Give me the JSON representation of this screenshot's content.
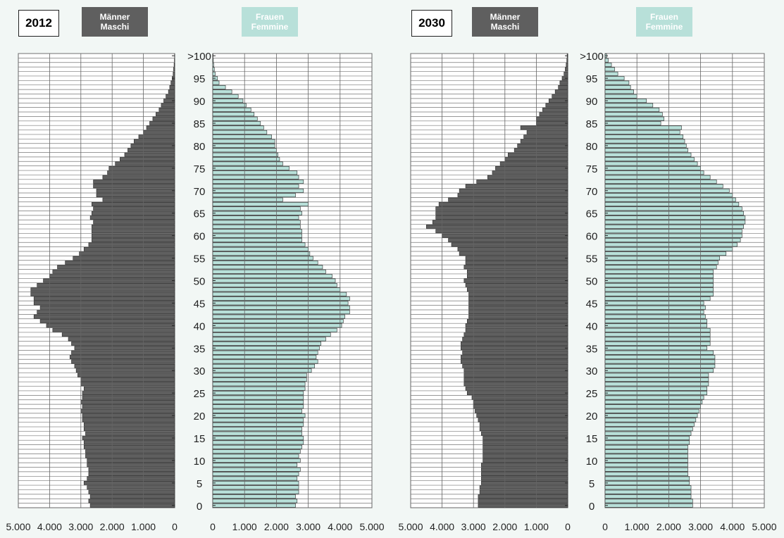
{
  "colors": {
    "male": "#5f5f5f",
    "female": "#b8e0d9",
    "grid": "#666666",
    "background": "#f2f7f5"
  },
  "legend": {
    "male_de": "Männer",
    "male_it": "Maschi",
    "female_de": "Frauen",
    "female_it": "Femmine"
  },
  "chart_data": [
    {
      "type": "bar",
      "title": "2012",
      "subtype": "population-pyramid",
      "age_labels": [
        "0",
        "5",
        "10",
        "15",
        "20",
        "25",
        "30",
        "35",
        "40",
        "45",
        "50",
        "55",
        "60",
        "65",
        "70",
        "75",
        "80",
        "85",
        "90",
        "95",
        ">100"
      ],
      "x_tick_labels_left": [
        "5.000",
        "4.000",
        "3.000",
        "2.000",
        "1.000",
        "0"
      ],
      "x_tick_labels_right": [
        "0",
        "1.000",
        "2.000",
        "3.000",
        "4.000",
        "5.000"
      ],
      "xlim": [
        0,
        5000
      ],
      "ages": [
        0,
        1,
        2,
        3,
        4,
        5,
        6,
        7,
        8,
        9,
        10,
        11,
        12,
        13,
        14,
        15,
        16,
        17,
        18,
        19,
        20,
        21,
        22,
        23,
        24,
        25,
        26,
        27,
        28,
        29,
        30,
        31,
        32,
        33,
        34,
        35,
        36,
        37,
        38,
        39,
        40,
        41,
        42,
        43,
        44,
        45,
        46,
        47,
        48,
        49,
        50,
        51,
        52,
        53,
        54,
        55,
        56,
        57,
        58,
        59,
        60,
        61,
        62,
        63,
        64,
        65,
        66,
        67,
        68,
        69,
        70,
        71,
        72,
        73,
        74,
        75,
        76,
        77,
        78,
        79,
        80,
        81,
        82,
        83,
        84,
        85,
        86,
        87,
        88,
        89,
        90,
        91,
        92,
        93,
        94,
        95,
        96,
        97,
        98,
        99,
        100
      ],
      "series": [
        {
          "name": "Männer",
          "values": [
            2700,
            2750,
            2700,
            2750,
            2800,
            2900,
            2800,
            2750,
            2750,
            2800,
            2800,
            2850,
            2850,
            2900,
            2900,
            2950,
            2850,
            2900,
            2900,
            2950,
            2950,
            3000,
            2950,
            3000,
            2950,
            2950,
            2900,
            3000,
            3000,
            3100,
            3150,
            3200,
            3300,
            3350,
            3300,
            3200,
            3300,
            3400,
            3600,
            3900,
            4100,
            4300,
            4500,
            4400,
            4300,
            4500,
            4500,
            4600,
            4600,
            4400,
            4200,
            4000,
            3900,
            3750,
            3500,
            3250,
            3050,
            2900,
            2750,
            2650,
            2650,
            2650,
            2650,
            2600,
            2700,
            2650,
            2600,
            2650,
            2300,
            2500,
            2500,
            2600,
            2600,
            2300,
            2150,
            2100,
            1900,
            1750,
            1600,
            1500,
            1400,
            1300,
            1150,
            1000,
            900,
            800,
            700,
            600,
            500,
            430,
            350,
            280,
            200,
            160,
            120,
            80,
            50,
            35,
            20,
            10,
            5
          ]
        },
        {
          "name": "Frauen",
          "values": [
            2600,
            2650,
            2600,
            2700,
            2700,
            2700,
            2650,
            2700,
            2750,
            2650,
            2750,
            2700,
            2750,
            2800,
            2850,
            2850,
            2800,
            2800,
            2850,
            2850,
            2900,
            2800,
            2850,
            2850,
            2850,
            2850,
            2900,
            2900,
            2950,
            2950,
            3100,
            3200,
            3300,
            3250,
            3300,
            3350,
            3400,
            3550,
            3700,
            3900,
            4050,
            4100,
            4150,
            4300,
            4300,
            4250,
            4300,
            4200,
            4000,
            3900,
            3850,
            3750,
            3550,
            3450,
            3300,
            3150,
            3050,
            3000,
            2900,
            2800,
            2800,
            2800,
            2750,
            2750,
            2700,
            2800,
            2750,
            3000,
            2200,
            2600,
            2850,
            2700,
            2850,
            2700,
            2650,
            2400,
            2200,
            2100,
            2050,
            2000,
            1950,
            1950,
            1850,
            1700,
            1600,
            1500,
            1400,
            1300,
            1200,
            1050,
            950,
            800,
            600,
            400,
            200,
            150,
            80,
            50,
            30,
            20,
            10
          ]
        }
      ]
    },
    {
      "type": "bar",
      "title": "2030",
      "subtype": "population-pyramid",
      "age_labels": [
        "0",
        "5",
        "10",
        "15",
        "20",
        "25",
        "30",
        "35",
        "40",
        "45",
        "50",
        "55",
        "60",
        "65",
        "70",
        "75",
        "80",
        "85",
        "90",
        "95",
        ">100"
      ],
      "x_tick_labels_left": [
        "5.000",
        "4.000",
        "3.000",
        "2.000",
        "1.000",
        "0"
      ],
      "x_tick_labels_right": [
        "0",
        "1.000",
        "2.000",
        "3.000",
        "4.000",
        "5.000"
      ],
      "xlim": [
        0,
        5000
      ],
      "ages": [
        0,
        1,
        2,
        3,
        4,
        5,
        6,
        7,
        8,
        9,
        10,
        11,
        12,
        13,
        14,
        15,
        16,
        17,
        18,
        19,
        20,
        21,
        22,
        23,
        24,
        25,
        26,
        27,
        28,
        29,
        30,
        31,
        32,
        33,
        34,
        35,
        36,
        37,
        38,
        39,
        40,
        41,
        42,
        43,
        44,
        45,
        46,
        47,
        48,
        49,
        50,
        51,
        52,
        53,
        54,
        55,
        56,
        57,
        58,
        59,
        60,
        61,
        62,
        63,
        64,
        65,
        66,
        67,
        68,
        69,
        70,
        71,
        72,
        73,
        74,
        75,
        76,
        77,
        78,
        79,
        80,
        81,
        82,
        83,
        84,
        85,
        86,
        87,
        88,
        89,
        90,
        91,
        92,
        93,
        94,
        95,
        96,
        97,
        98,
        99,
        100
      ],
      "series": [
        {
          "name": "Männer",
          "values": [
            2850,
            2850,
            2850,
            2800,
            2800,
            2750,
            2750,
            2750,
            2750,
            2750,
            2700,
            2700,
            2700,
            2700,
            2700,
            2700,
            2750,
            2800,
            2800,
            2850,
            2900,
            2950,
            3000,
            3000,
            3050,
            3200,
            3250,
            3300,
            3300,
            3300,
            3300,
            3350,
            3400,
            3400,
            3350,
            3400,
            3400,
            3350,
            3300,
            3250,
            3250,
            3200,
            3150,
            3150,
            3150,
            3150,
            3150,
            3150,
            3200,
            3250,
            3300,
            3200,
            3200,
            3300,
            3250,
            3250,
            3450,
            3500,
            3700,
            3800,
            4000,
            4200,
            4500,
            4300,
            4200,
            4200,
            4200,
            4100,
            3800,
            3500,
            3450,
            3250,
            2900,
            2550,
            2400,
            2300,
            2150,
            2000,
            1900,
            1700,
            1600,
            1500,
            1400,
            1300,
            1500,
            1000,
            1000,
            900,
            800,
            700,
            600,
            500,
            400,
            300,
            250,
            180,
            120,
            80,
            50,
            30,
            20
          ]
        },
        {
          "name": "Frauen",
          "values": [
            2750,
            2750,
            2700,
            2700,
            2700,
            2650,
            2650,
            2600,
            2600,
            2600,
            2600,
            2600,
            2600,
            2600,
            2650,
            2650,
            2700,
            2750,
            2800,
            2850,
            2900,
            2950,
            3000,
            3050,
            3100,
            3200,
            3200,
            3250,
            3250,
            3250,
            3400,
            3450,
            3450,
            3450,
            3400,
            3200,
            3300,
            3300,
            3300,
            3300,
            3200,
            3200,
            3150,
            3100,
            3150,
            3100,
            3300,
            3400,
            3400,
            3400,
            3400,
            3400,
            3400,
            3500,
            3550,
            3600,
            3800,
            4000,
            4150,
            4250,
            4300,
            4300,
            4350,
            4400,
            4400,
            4350,
            4300,
            4200,
            4100,
            4000,
            3900,
            3700,
            3500,
            3300,
            3100,
            3000,
            2900,
            2800,
            2700,
            2600,
            2550,
            2500,
            2450,
            2350,
            2400,
            1750,
            1850,
            1800,
            1700,
            1500,
            1300,
            1000,
            900,
            800,
            750,
            600,
            400,
            300,
            200,
            100,
            50
          ]
        }
      ]
    }
  ]
}
